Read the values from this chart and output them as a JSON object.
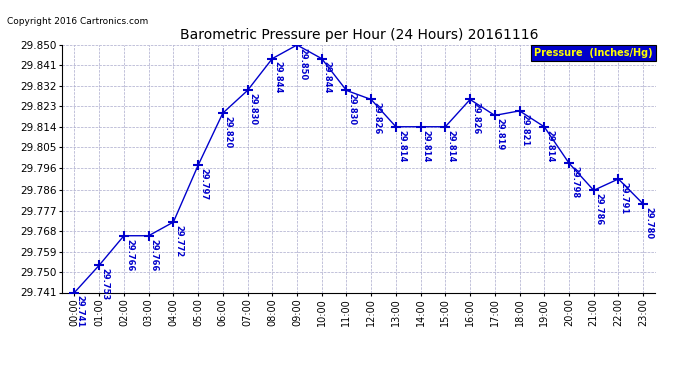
{
  "title": "Barometric Pressure per Hour (24 Hours) 20161116",
  "copyright": "Copyright 2016 Cartronics.com",
  "legend_label": "Pressure  (Inches/Hg)",
  "hours": [
    0,
    1,
    2,
    3,
    4,
    5,
    6,
    7,
    8,
    9,
    10,
    11,
    12,
    13,
    14,
    15,
    16,
    17,
    18,
    19,
    20,
    21,
    22,
    23
  ],
  "values": [
    29.741,
    29.753,
    29.766,
    29.766,
    29.772,
    29.797,
    29.82,
    29.83,
    29.844,
    29.85,
    29.844,
    29.83,
    29.826,
    29.814,
    29.814,
    29.814,
    29.826,
    29.819,
    29.821,
    29.814,
    29.798,
    29.786,
    29.791,
    29.78
  ],
  "ylim_min": 29.741,
  "ylim_max": 29.85,
  "yticks": [
    29.741,
    29.75,
    29.759,
    29.768,
    29.777,
    29.786,
    29.796,
    29.805,
    29.814,
    29.823,
    29.832,
    29.841,
    29.85
  ],
  "line_color": "#0000CC",
  "marker": "+",
  "marker_size": 7,
  "label_color": "#0000CC",
  "grid_color": "#AAAACC",
  "bg_color": "#FFFFFF",
  "title_color": "#000000",
  "legend_bg": "#0000CC",
  "legend_text_color": "#FFFF00",
  "fig_width": 6.9,
  "fig_height": 3.75,
  "dpi": 100
}
